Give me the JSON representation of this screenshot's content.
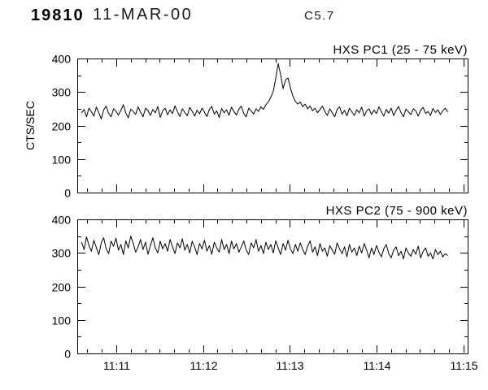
{
  "header": {
    "flare_number": "19810",
    "date": "11-MAR-00",
    "goes_class": "C5.7"
  },
  "colors": {
    "foreground": "#000000",
    "background": "#ffffff"
  },
  "chart_data": [
    {
      "type": "line",
      "title": "HXS PC1 (25 - 75 keV)",
      "ylabel": "CTS/SEC",
      "ylim": [
        0,
        400
      ],
      "yticks": [
        0,
        100,
        200,
        300,
        400
      ],
      "y_minor_step": 50,
      "xlim_minutes": [
        670.55,
        675.05
      ],
      "xticks": [
        {
          "t": 671,
          "label": "11:11"
        },
        {
          "t": 672,
          "label": "11:12"
        },
        {
          "t": 673,
          "label": "11:13"
        },
        {
          "t": 674,
          "label": "11:14"
        },
        {
          "t": 675,
          "label": "11:15"
        }
      ],
      "x_minor_subdivisions": 6,
      "show_x_labels": false,
      "series_x_range": [
        670.6,
        674.82
      ],
      "values": [
        238,
        248,
        226,
        252,
        241,
        228,
        255,
        238,
        220,
        247,
        258,
        236,
        226,
        250,
        243,
        231,
        246,
        262,
        237,
        223,
        249,
        242,
        233,
        256,
        240,
        226,
        252,
        245,
        230,
        248,
        238,
        257,
        224,
        244,
        252,
        232,
        247,
        236,
        259,
        241,
        227,
        250,
        239,
        229,
        254,
        243,
        228,
        246,
        235,
        252,
        240,
        227,
        248,
        257,
        234,
        244,
        224,
        251,
        238,
        247,
        230,
        255,
        242,
        231,
        249,
        258,
        236,
        226,
        252,
        244,
        234,
        250,
        242,
        256,
        248,
        262,
        270,
        285,
        302,
        340,
        385,
        352,
        310,
        336,
        342,
        312,
        288,
        272,
        264,
        270,
        256,
        264,
        250,
        258,
        244,
        252,
        238,
        248,
        258,
        242,
        230,
        250,
        238,
        226,
        248,
        256,
        234,
        245,
        229,
        252,
        241,
        230,
        247,
        238,
        255,
        228,
        244,
        250,
        233,
        246,
        236,
        256,
        242,
        228,
        248,
        237,
        252,
        230,
        245,
        257,
        238,
        226,
        249,
        241,
        233,
        250,
        244,
        228,
        246,
        254,
        236,
        242,
        230,
        251,
        239,
        247,
        233,
        244,
        252,
        240
      ]
    },
    {
      "type": "line",
      "title": "HXS PC2 (75 - 900 keV)",
      "ylabel": "",
      "ylim": [
        0,
        400
      ],
      "yticks": [
        0,
        100,
        200,
        300,
        400
      ],
      "y_minor_step": 50,
      "xlim_minutes": [
        670.55,
        675.05
      ],
      "xticks": [
        {
          "t": 671,
          "label": "11:11"
        },
        {
          "t": 672,
          "label": "11:12"
        },
        {
          "t": 673,
          "label": "11:13"
        },
        {
          "t": 674,
          "label": "11:14"
        },
        {
          "t": 675,
          "label": "11:15"
        }
      ],
      "x_minor_subdivisions": 6,
      "show_x_labels": true,
      "series_x_range": [
        670.6,
        674.82
      ],
      "values": [
        332,
        310,
        348,
        322,
        305,
        338,
        315,
        295,
        330,
        345,
        312,
        298,
        335,
        320,
        344,
        308,
        325,
        295,
        336,
        315,
        350,
        328,
        302,
        318,
        340,
        310,
        332,
        296,
        322,
        345,
        315,
        300,
        335,
        312,
        328,
        305,
        340,
        318,
        298,
        330,
        315,
        342,
        308,
        325,
        300,
        335,
        318,
        295,
        328,
        312,
        338,
        305,
        322,
        296,
        332,
        315,
        302,
        340,
        310,
        325,
        298,
        335,
        312,
        328,
        302,
        318,
        336,
        308,
        295,
        330,
        315,
        340,
        305,
        322,
        298,
        332,
        310,
        325,
        300,
        336,
        315,
        295,
        328,
        308,
        338,
        312,
        298,
        325,
        305,
        330,
        310,
        295,
        320,
        336,
        302,
        318,
        292,
        328,
        305,
        315,
        290,
        322,
        308,
        296,
        330,
        312,
        298,
        318,
        288,
        325,
        302,
        315,
        292,
        320,
        300,
        328,
        308,
        285,
        315,
        295,
        322,
        302,
        288,
        312,
        325,
        298,
        285,
        308,
        318,
        292,
        305,
        282,
        315,
        300,
        290,
        310,
        296,
        320,
        285,
        305,
        315,
        290,
        300,
        282,
        310,
        295,
        305,
        288,
        298,
        292
      ]
    }
  ]
}
